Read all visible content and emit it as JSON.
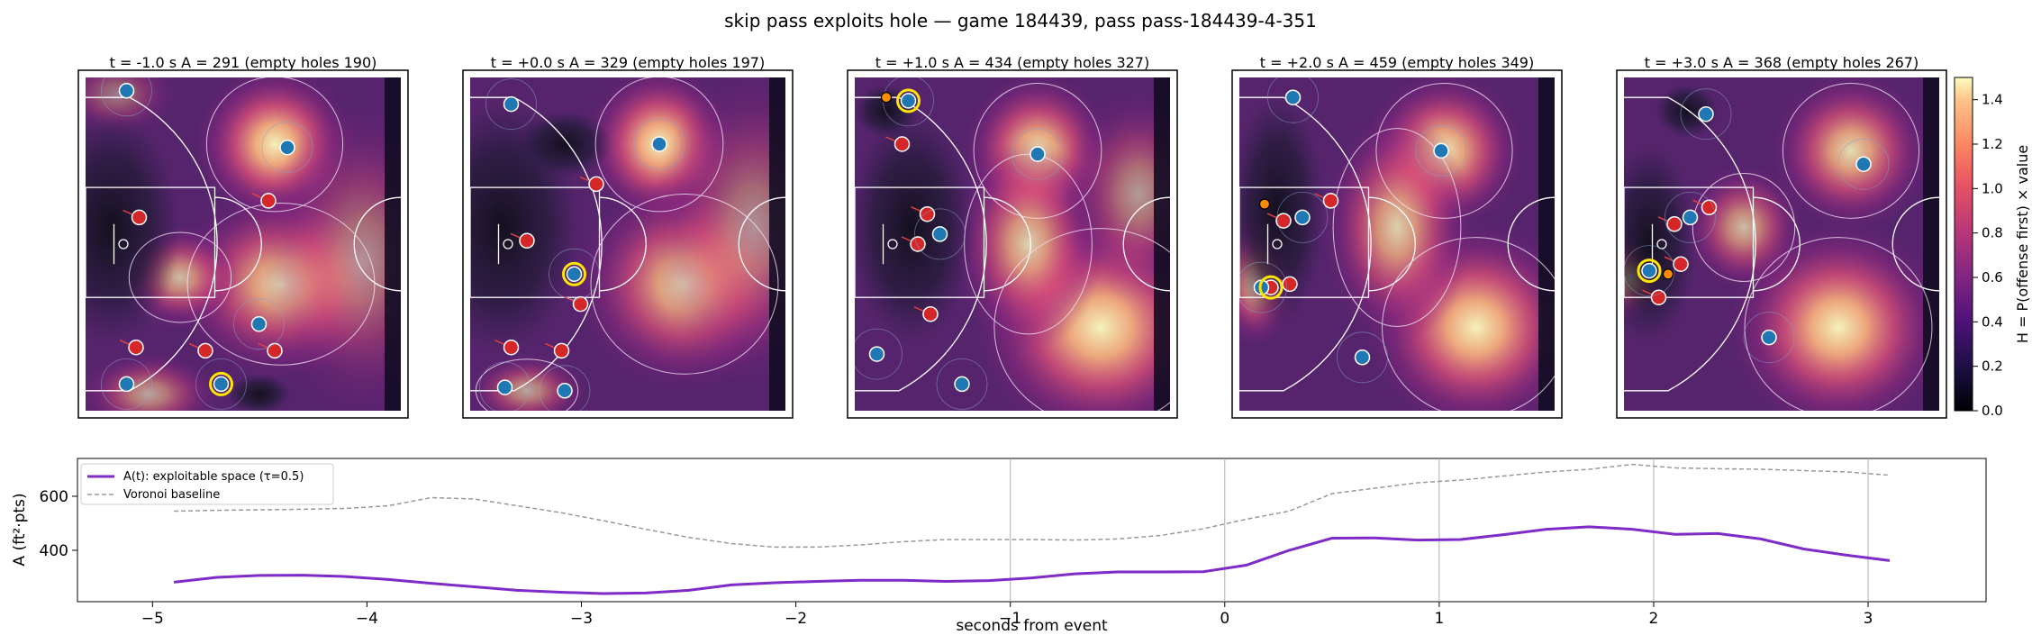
{
  "figure": {
    "title": "skip pass exploits hole — game 184439, pass pass-184439-4-351"
  },
  "panels": [
    {
      "title": "t = -1.0 s   A = 291  (empty holes 190)",
      "blobs": [
        [
          0.6,
          0.2,
          0.16,
          0.15,
          0.95
        ],
        [
          0.62,
          0.62,
          0.22,
          0.18,
          0.85
        ],
        [
          0.3,
          0.6,
          0.12,
          0.1,
          0.7
        ],
        [
          0.2,
          0.95,
          0.14,
          0.08,
          0.6
        ],
        [
          0.88,
          0.55,
          0.2,
          0.3,
          0.5
        ],
        [
          0.1,
          0.05,
          0.12,
          0.08,
          0.4
        ]
      ],
      "dark": [
        [
          0.08,
          0.45,
          0.22,
          0.35
        ],
        [
          0.55,
          0.95,
          0.1,
          0.06
        ]
      ],
      "offense": [
        [
          0.13,
          0.04
        ],
        [
          0.64,
          0.21
        ],
        [
          0.55,
          0.74
        ],
        [
          0.13,
          0.92
        ],
        [
          0.43,
          0.92
        ]
      ],
      "defense": [
        [
          0.17,
          0.42
        ],
        [
          0.58,
          0.37
        ],
        [
          0.16,
          0.81
        ],
        [
          0.38,
          0.82
        ],
        [
          0.6,
          0.82
        ]
      ],
      "ball": [
        0.43,
        0.92
      ],
      "handler": null
    },
    {
      "title": "t = +0.0 s   A = 329  (empty holes 197)",
      "blobs": [
        [
          0.6,
          0.2,
          0.15,
          0.15,
          0.95
        ],
        [
          0.68,
          0.62,
          0.22,
          0.2,
          0.85
        ],
        [
          0.18,
          0.94,
          0.12,
          0.07,
          0.6
        ],
        [
          0.9,
          0.45,
          0.2,
          0.3,
          0.5
        ]
      ],
      "dark": [
        [
          0.1,
          0.45,
          0.25,
          0.38
        ],
        [
          0.3,
          0.2,
          0.15,
          0.1
        ]
      ],
      "offense": [
        [
          0.13,
          0.08
        ],
        [
          0.6,
          0.2
        ],
        [
          0.33,
          0.59
        ],
        [
          0.11,
          0.93
        ],
        [
          0.3,
          0.94
        ]
      ],
      "defense": [
        [
          0.4,
          0.32
        ],
        [
          0.18,
          0.49
        ],
        [
          0.35,
          0.68
        ],
        [
          0.13,
          0.81
        ],
        [
          0.29,
          0.82
        ]
      ],
      "ball": [
        0.33,
        0.59
      ],
      "handler": null
    },
    {
      "title": "t = +1.0 s   A = 434  (empty holes 327)",
      "blobs": [
        [
          0.58,
          0.22,
          0.15,
          0.15,
          0.9
        ],
        [
          0.78,
          0.75,
          0.25,
          0.22,
          0.95
        ],
        [
          0.55,
          0.5,
          0.15,
          0.2,
          0.8
        ],
        [
          0.9,
          0.35,
          0.15,
          0.2,
          0.55
        ]
      ],
      "dark": [
        [
          0.18,
          0.45,
          0.2,
          0.35
        ],
        [
          0.1,
          0.1,
          0.1,
          0.08
        ]
      ],
      "offense": [
        [
          0.17,
          0.07
        ],
        [
          0.58,
          0.23
        ],
        [
          0.27,
          0.47
        ],
        [
          0.07,
          0.83
        ],
        [
          0.34,
          0.92
        ]
      ],
      "defense": [
        [
          0.15,
          0.2
        ],
        [
          0.23,
          0.41
        ],
        [
          0.2,
          0.5
        ],
        [
          0.24,
          0.71
        ]
      ],
      "ball": [
        0.17,
        0.07
      ],
      "handler": [
        0.1,
        0.06
      ]
    },
    {
      "title": "t = +2.0 s   A = 459  (empty holes 349)",
      "blobs": [
        [
          0.65,
          0.22,
          0.16,
          0.15,
          0.9
        ],
        [
          0.75,
          0.75,
          0.22,
          0.2,
          0.95
        ],
        [
          0.5,
          0.45,
          0.15,
          0.22,
          0.8
        ],
        [
          0.05,
          0.62,
          0.08,
          0.12,
          0.7
        ]
      ],
      "dark": [
        [
          0.12,
          0.4,
          0.15,
          0.35
        ]
      ],
      "offense": [
        [
          0.17,
          0.06
        ],
        [
          0.64,
          0.22
        ],
        [
          0.2,
          0.42
        ],
        [
          0.07,
          0.63
        ],
        [
          0.39,
          0.84
        ]
      ],
      "defense": [
        [
          0.29,
          0.37
        ],
        [
          0.14,
          0.43
        ],
        [
          0.16,
          0.62
        ],
        [
          0.1,
          0.63
        ]
      ],
      "ball": [
        0.1,
        0.63
      ],
      "handler": [
        0.08,
        0.38
      ]
    },
    {
      "title": "t = +3.0 s   A = 368  (empty holes 267)",
      "blobs": [
        [
          0.72,
          0.22,
          0.16,
          0.15,
          0.85
        ],
        [
          0.68,
          0.75,
          0.22,
          0.2,
          0.95
        ],
        [
          0.38,
          0.45,
          0.12,
          0.12,
          0.7
        ],
        [
          0.02,
          0.6,
          0.07,
          0.08,
          0.9
        ]
      ],
      "dark": [
        [
          0.08,
          0.5,
          0.15,
          0.3
        ],
        [
          0.2,
          0.1,
          0.1,
          0.08
        ]
      ],
      "offense": [
        [
          0.26,
          0.11
        ],
        [
          0.76,
          0.26
        ],
        [
          0.21,
          0.42
        ],
        [
          0.08,
          0.58
        ],
        [
          0.46,
          0.78
        ]
      ],
      "defense": [
        [
          0.27,
          0.39
        ],
        [
          0.16,
          0.44
        ],
        [
          0.18,
          0.56
        ],
        [
          0.11,
          0.66
        ]
      ],
      "ball": [
        0.08,
        0.58
      ],
      "handler": [
        0.14,
        0.59
      ]
    }
  ],
  "colorbar": {
    "label": "H = P(offense first) × value",
    "ticks": [
      "0.0",
      "0.2",
      "0.4",
      "0.6",
      "0.8",
      "1.0",
      "1.2",
      "1.4"
    ],
    "tick_values": [
      0,
      0.2,
      0.4,
      0.6,
      0.8,
      1.0,
      1.2,
      1.4
    ],
    "min": 0,
    "max": 1.5
  },
  "colors": {
    "offense": "#1f77b4",
    "defense": "#d62728",
    "highlight": "#ffe600",
    "handler": "#ff8c00",
    "area_line": "#7e2bc7",
    "voronoi_line": "#999999"
  },
  "chart_data": {
    "type": "line",
    "title": "",
    "xlabel": "seconds from event",
    "ylabel": "A (ft²·pts)",
    "xlim": [
      -5.35,
      3.55
    ],
    "ylim": [
      210,
      740
    ],
    "xticks": [
      -5,
      -4,
      -3,
      -2,
      -1,
      0,
      1,
      2,
      3
    ],
    "xtick_labels": [
      "−5",
      "−4",
      "−3",
      "−2",
      "−1",
      "0",
      "1",
      "2",
      "3"
    ],
    "yticks": [
      400,
      600
    ],
    "ytick_labels": [
      "400",
      "600"
    ],
    "vlines": [
      -1,
      0,
      1,
      2,
      3
    ],
    "legend": "upper left",
    "series": [
      {
        "name": "A(t): exploitable space (τ=0.5)",
        "style": "solid",
        "x": [
          -4.9,
          -4.7,
          -4.5,
          -4.3,
          -4.1,
          -3.9,
          -3.7,
          -3.5,
          -3.3,
          -3.1,
          -2.9,
          -2.7,
          -2.5,
          -2.3,
          -2.1,
          -1.9,
          -1.7,
          -1.5,
          -1.3,
          -1.1,
          -0.9,
          -0.7,
          -0.5,
          -0.3,
          -0.1,
          0.1,
          0.3,
          0.5,
          0.7,
          0.9,
          1.1,
          1.3,
          1.5,
          1.7,
          1.9,
          2.1,
          2.3,
          2.5,
          2.7,
          2.9,
          3.1
        ],
        "y": [
          282,
          300,
          307,
          308,
          303,
          292,
          278,
          265,
          252,
          245,
          240,
          242,
          252,
          272,
          280,
          285,
          289,
          289,
          285,
          288,
          298,
          313,
          320,
          320,
          321,
          345,
          400,
          445,
          446,
          438,
          440,
          458,
          478,
          487,
          478,
          459,
          462,
          442,
          405,
          382,
          362
        ]
      },
      {
        "name": "Voronoi baseline",
        "style": "dashed",
        "x": [
          -4.9,
          -4.7,
          -4.5,
          -4.3,
          -4.1,
          -3.9,
          -3.7,
          -3.5,
          -3.3,
          -3.1,
          -2.9,
          -2.7,
          -2.5,
          -2.3,
          -2.1,
          -1.9,
          -1.7,
          -1.5,
          -1.3,
          -1.1,
          -0.9,
          -0.7,
          -0.5,
          -0.3,
          -0.1,
          0.1,
          0.3,
          0.5,
          0.7,
          0.9,
          1.1,
          1.3,
          1.5,
          1.7,
          1.9,
          2.1,
          2.3,
          2.5,
          2.7,
          2.9,
          3.1
        ],
        "y": [
          545,
          548,
          550,
          552,
          555,
          565,
          595,
          590,
          565,
          540,
          510,
          478,
          448,
          425,
          412,
          412,
          420,
          432,
          440,
          440,
          440,
          438,
          442,
          455,
          480,
          515,
          545,
          610,
          630,
          650,
          660,
          675,
          690,
          700,
          718,
          705,
          702,
          700,
          695,
          690,
          678
        ]
      }
    ]
  }
}
